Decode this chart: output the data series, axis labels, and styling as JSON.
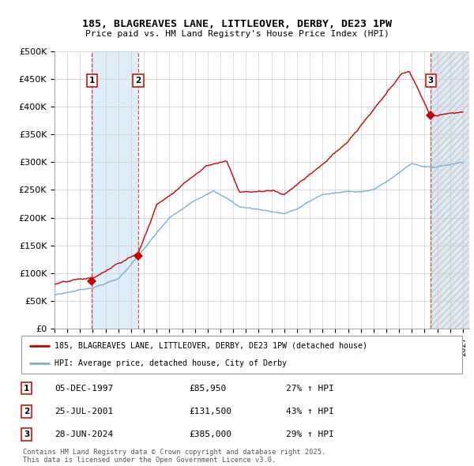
{
  "title": "185, BLAGREAVES LANE, LITTLEOVER, DERBY, DE23 1PW",
  "subtitle": "Price paid vs. HM Land Registry's House Price Index (HPI)",
  "ylim": [
    0,
    500000
  ],
  "yticks": [
    0,
    50000,
    100000,
    150000,
    200000,
    250000,
    300000,
    350000,
    400000,
    450000,
    500000
  ],
  "ytick_labels": [
    "£0",
    "£50K",
    "£100K",
    "£150K",
    "£200K",
    "£250K",
    "£300K",
    "£350K",
    "£400K",
    "£450K",
    "£500K"
  ],
  "xlim_start": 1995.0,
  "xlim_end": 2027.5,
  "transactions": [
    {
      "num": 1,
      "date": "05-DEC-1997",
      "year": 1997.92,
      "price": 85950,
      "pct": "27%",
      "direction": "↑"
    },
    {
      "num": 2,
      "date": "25-JUL-2001",
      "year": 2001.56,
      "price": 131500,
      "pct": "43%",
      "direction": "↑"
    },
    {
      "num": 3,
      "date": "28-JUN-2024",
      "year": 2024.49,
      "price": 385000,
      "pct": "29%",
      "direction": "↑"
    }
  ],
  "legend_line1": "185, BLAGREAVES LANE, LITTLEOVER, DERBY, DE23 1PW (detached house)",
  "legend_line2": "HPI: Average price, detached house, City of Derby",
  "footnote": "Contains HM Land Registry data © Crown copyright and database right 2025.\nThis data is licensed under the Open Government Licence v3.0.",
  "line_color_red": "#cc0000",
  "line_color_blue": "#7aafd4",
  "shade_color": "#ddeef8",
  "hatch_color": "#e0e8f0",
  "background_color": "#ffffff",
  "grid_color": "#cccccc"
}
